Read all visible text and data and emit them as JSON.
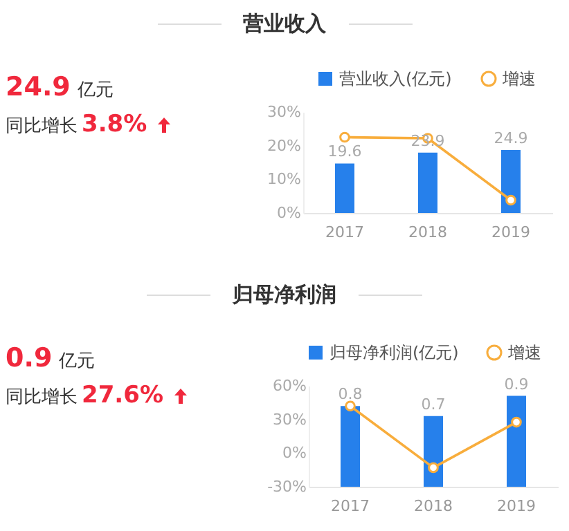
{
  "chart_data": [
    {
      "type": "other",
      "title": "营业收入",
      "annotations": [
        "24.9",
        "亿元",
        "同比增长",
        "3.8%"
      ]
    },
    {
      "type": "bar",
      "categories": [
        "2017",
        "2018",
        "2019"
      ],
      "legend": "top right",
      "marker": "circle",
      "ylim": [
        0,
        30
      ],
      "yticks": [
        {
          "value": 0,
          "label": "0%"
        },
        {
          "value": 10,
          "label": "10%"
        },
        {
          "value": 20,
          "label": "20%"
        },
        {
          "value": 30,
          "label": "30%"
        }
      ],
      "y2lim": [
        0,
        40
      ],
      "series": [
        {
          "name": "营业收入(亿元)",
          "type": "bar",
          "axis": "y2",
          "color": "#2680eb",
          "values": [
            19.6,
            23.9,
            24.9
          ],
          "value_labels": [
            "19.6",
            "23.9",
            "24.9"
          ]
        },
        {
          "name": "增速",
          "type": "line",
          "color": "#f8ad3c",
          "values": [
            22.5,
            22.2,
            3.8
          ]
        }
      ]
    },
    {
      "type": "other",
      "title": "归母净利润",
      "annotations": [
        "0.9",
        "亿元",
        "同比增长",
        "27.6%"
      ]
    },
    {
      "type": "bar",
      "categories": [
        "2017",
        "2018",
        "2019"
      ],
      "legend": "top right",
      "marker": "circle",
      "ylim": [
        -30,
        60
      ],
      "yticks": [
        {
          "value": -30,
          "label": "-30%"
        },
        {
          "value": 0,
          "label": "0%"
        },
        {
          "value": 30,
          "label": "30%"
        },
        {
          "value": 60,
          "label": "60%"
        }
      ],
      "y2lim": [
        0,
        1
      ],
      "series": [
        {
          "name": "归母净利润(亿元)",
          "type": "bar",
          "axis": "y2",
          "color": "#2680eb",
          "values": [
            0.8,
            0.7,
            0.9
          ],
          "value_labels": [
            "0.8",
            "0.7",
            "0.9"
          ]
        },
        {
          "name": "增速",
          "type": "line",
          "color": "#f8ad3c",
          "values": [
            42,
            -13,
            27.6
          ]
        }
      ]
    }
  ]
}
